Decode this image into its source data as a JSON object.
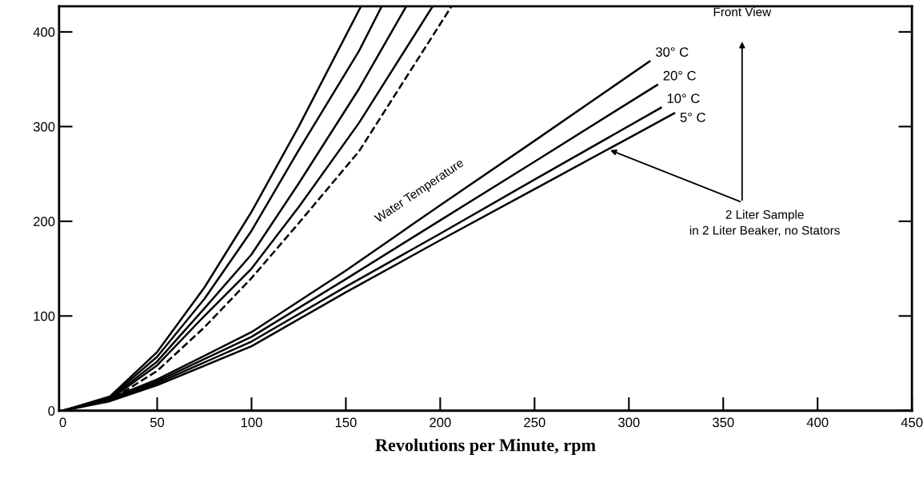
{
  "chart_data": {
    "type": "line",
    "xlabel": "Revolutions per Minute, rpm",
    "xlim": [
      -2,
      450
    ],
    "ylim": [
      0,
      427
    ],
    "xticks": [
      0,
      50,
      100,
      150,
      200,
      250,
      300,
      350,
      400,
      450
    ],
    "yticks": [
      0,
      100,
      200,
      300,
      400
    ],
    "grid": false,
    "legend": false,
    "marker": "none",
    "series": [
      {
        "color": "#000000",
        "line_style": "solid",
        "x": [
          0,
          25,
          50,
          75,
          100,
          125,
          158
        ],
        "values": [
          0,
          15,
          62,
          130,
          210,
          300,
          427
        ]
      },
      {
        "color": "#000000",
        "line_style": "solid",
        "x": [
          0,
          25,
          50,
          75,
          100,
          125,
          157,
          169
        ],
        "values": [
          0,
          14,
          57,
          118,
          190,
          275,
          380,
          427
        ]
      },
      {
        "color": "#000000",
        "line_style": "solid",
        "x": [
          0,
          25,
          50,
          75,
          100,
          125,
          157,
          182
        ],
        "values": [
          0,
          13,
          52,
          108,
          165,
          240,
          340,
          427
        ]
      },
      {
        "color": "#000000",
        "line_style": "solid",
        "x": [
          0,
          25,
          50,
          75,
          100,
          125,
          157,
          196
        ],
        "values": [
          0,
          12,
          48,
          100,
          150,
          215,
          304,
          427
        ]
      },
      {
        "color": "#000000",
        "line_style": "dashed",
        "x": [
          0,
          25,
          50,
          75,
          100,
          125,
          157,
          206
        ],
        "values": [
          0,
          11,
          42,
          88,
          140,
          198,
          274,
          427
        ]
      },
      {
        "name": "30° C",
        "color": "#000000",
        "line_style": "solid",
        "x": [
          0,
          25,
          50,
          100,
          150,
          200,
          250,
          311
        ],
        "values": [
          0,
          13,
          33,
          83,
          148,
          217,
          285,
          369
        ]
      },
      {
        "name": "20° C",
        "color": "#000000",
        "line_style": "solid",
        "x": [
          0,
          25,
          50,
          100,
          150,
          200,
          250,
          315
        ],
        "values": [
          0,
          12,
          31,
          78,
          139,
          201,
          263,
          344
        ]
      },
      {
        "name": "10° C",
        "color": "#000000",
        "line_style": "solid",
        "x": [
          0,
          25,
          50,
          100,
          150,
          200,
          250,
          317
        ],
        "values": [
          0,
          11,
          29,
          73,
          131,
          187,
          244,
          320
        ]
      },
      {
        "name": "5° C",
        "color": "#000000",
        "line_style": "solid",
        "x": [
          0,
          25,
          50,
          100,
          150,
          200,
          250,
          300,
          324
        ],
        "values": [
          0,
          10,
          27,
          68,
          125,
          180,
          234,
          288,
          314
        ]
      }
    ],
    "annotations": [
      "Water Temperature",
      "Front View",
      {
        "text": "2 Liter Sample\nin 2 Liter Beaker, no Stators",
        "x": 289,
        "y": 276
      }
    ]
  }
}
